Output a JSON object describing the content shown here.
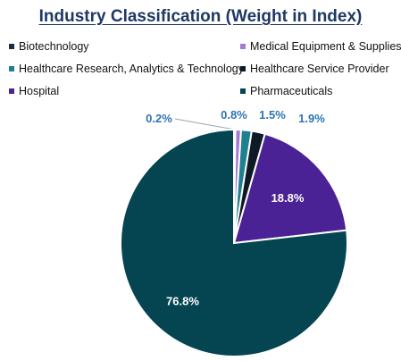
{
  "chart_data": {
    "type": "pie",
    "title": "Industry Classification (Weight in Index)",
    "legend_placement": "top",
    "series": [
      {
        "name": "Biotechnology",
        "value": 0.2,
        "label": "0.2%",
        "color": "#1c2a45"
      },
      {
        "name": "Medical Equipment & Supplies",
        "value": 0.8,
        "label": "0.8%",
        "color": "#a678d8"
      },
      {
        "name": "Healthcare Research, Analytics & Technology",
        "value": 1.5,
        "label": "1.5%",
        "color": "#1f8090"
      },
      {
        "name": "Healthcare Service Provider",
        "value": 1.9,
        "label": "1.9%",
        "color": "#0f1a26"
      },
      {
        "name": "Hospital",
        "value": 18.8,
        "label": "18.8%",
        "color": "#4b2196"
      },
      {
        "name": "Pharmaceuticals",
        "value": 76.8,
        "label": "76.8%",
        "color": "#054552"
      }
    ],
    "label_colors": {
      "outside": "#2e74b5",
      "inside": "#ffffff"
    }
  }
}
